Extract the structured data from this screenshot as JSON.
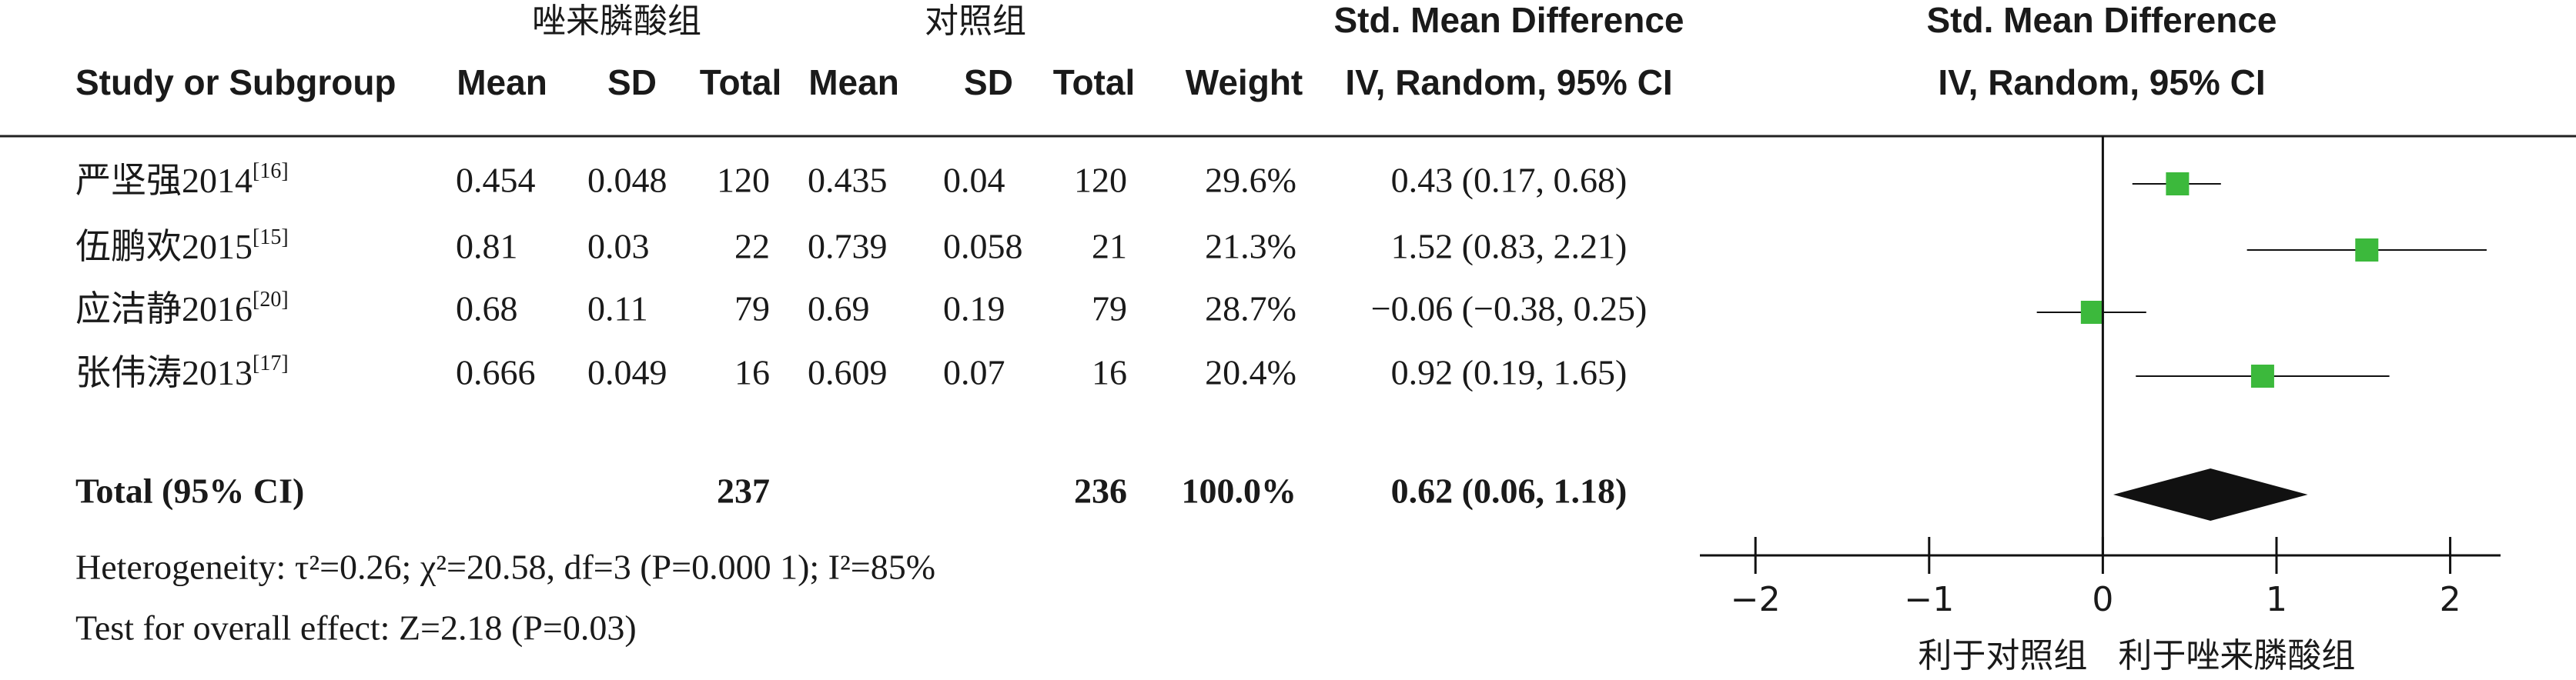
{
  "chart_data": {
    "type": "forest",
    "group_headers": [
      "唑来膦酸组",
      "对照组"
    ],
    "columns": [
      "Study or Subgroup",
      "Mean",
      "SD",
      "Total",
      "Mean",
      "SD",
      "Total",
      "Weight"
    ],
    "effect_header": [
      "Std. Mean Difference",
      "IV, Random, 95% CI"
    ],
    "plot_header": [
      "Std. Mean Difference",
      "IV, Random, 95% CI"
    ],
    "studies": [
      {
        "name": "严坚强2014",
        "ref": "[16]",
        "cells": [
          "0.454",
          "0.048",
          "120",
          "0.435",
          "0.04",
          "120",
          "29.6%"
        ]
      },
      {
        "name": "伍鹏欢2015",
        "ref": "[15]",
        "cells": [
          "0.81",
          "0.03",
          "22",
          "0.739",
          "0.058",
          "21",
          "21.3%"
        ]
      },
      {
        "name": "应洁静2016",
        "ref": "[20]",
        "cells": [
          "0.68",
          "0.11",
          "79",
          "0.69",
          "0.19",
          "79",
          "28.7%"
        ]
      },
      {
        "name": "张伟涛2013",
        "ref": "[17]",
        "cells": [
          "0.666",
          "0.049",
          "16",
          "0.609",
          "0.07",
          "16",
          "20.4%"
        ]
      }
    ],
    "values": [
      0.43,
      1.52,
      -0.06,
      0.92
    ],
    "ci_low": [
      0.17,
      0.83,
      -0.38,
      0.19
    ],
    "ci_high": [
      0.68,
      2.21,
      0.25,
      1.65
    ],
    "value_labels": [
      "0.43 (0.17, 0.68)",
      "1.52 (0.83, 2.21)",
      "−0.06 (−0.38, 0.25)",
      "0.92 (0.19, 1.65)"
    ],
    "color": "#3cb93c",
    "total_row": {
      "label": "Total (95% CI)",
      "cells": [
        "237",
        "236",
        "100.0%"
      ]
    },
    "total": {
      "value": 0.62,
      "ci_low": 0.06,
      "ci_high": 1.18,
      "value_label": "0.62 (0.06, 1.18)"
    },
    "heterogeneity": "Heterogeneity: τ²=0.26; χ²=20.58, df=3 (P=0.000 1); I²=85%",
    "overall_effect": "Test for overall effect: Z=2.18 (P=0.03)",
    "xlim": [
      -2.32,
      2.29
    ],
    "xticks": [
      {
        "value": -2,
        "label": "−2"
      },
      {
        "value": -1,
        "label": "−1"
      },
      0,
      1,
      2
    ],
    "x_left_label": "利于对照组",
    "x_right_label": "利于唑来膦酸组"
  }
}
